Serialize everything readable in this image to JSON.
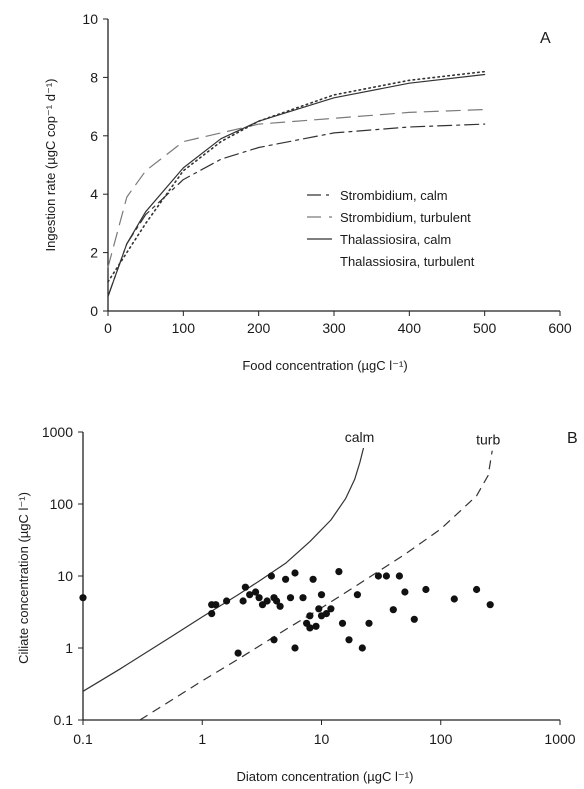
{
  "chart_data": [
    {
      "panel": "A",
      "type": "line",
      "xlabel": "Food concentration  (µgC l⁻¹)",
      "ylabel": "Ingestion rate  (µgC cop⁻¹ d⁻¹)",
      "xlim": [
        0,
        600
      ],
      "ylim": [
        0,
        10
      ],
      "xticks": [
        0,
        100,
        200,
        300,
        400,
        500,
        600
      ],
      "yticks": [
        0,
        2,
        4,
        6,
        8,
        10
      ],
      "grid": false,
      "legend_position": "lower-right",
      "series": [
        {
          "name": "Strombidium,  calm",
          "style": "dash-dot",
          "color": "#333333",
          "x": [
            0,
            25,
            50,
            100,
            150,
            200,
            300,
            400,
            500
          ],
          "y": [
            0.5,
            2.3,
            3.3,
            4.5,
            5.2,
            5.6,
            6.1,
            6.3,
            6.4
          ]
        },
        {
          "name": "Strombidium,  turbulent",
          "style": "long-dash",
          "color": "#7a7a7a",
          "x": [
            0,
            25,
            50,
            100,
            150,
            200,
            300,
            400,
            500
          ],
          "y": [
            1.5,
            3.9,
            4.8,
            5.8,
            6.1,
            6.4,
            6.6,
            6.8,
            6.9
          ]
        },
        {
          "name": "Thalassiosira,  calm",
          "style": "solid",
          "color": "#333333",
          "x": [
            0,
            25,
            50,
            100,
            150,
            200,
            300,
            400,
            500
          ],
          "y": [
            0.5,
            2.3,
            3.4,
            4.9,
            5.9,
            6.5,
            7.3,
            7.8,
            8.1
          ]
        },
        {
          "name": "Thalassiosira,  turbulent",
          "style": "dotted",
          "color": "#333333",
          "x": [
            0,
            25,
            50,
            100,
            150,
            200,
            300,
            400,
            500
          ],
          "y": [
            1.0,
            2.0,
            3.0,
            4.8,
            5.8,
            6.5,
            7.4,
            7.9,
            8.2
          ]
        }
      ]
    },
    {
      "panel": "B",
      "type": "scatter",
      "xlabel": "Diatom concentration  (µgC l⁻¹)",
      "ylabel": "Ciliate concentration  (µgC l⁻¹)",
      "xscale": "log",
      "yscale": "log",
      "xlim": [
        0.1,
        1000
      ],
      "ylim": [
        0.1,
        1000
      ],
      "xticks": [
        0.1,
        1,
        10,
        100,
        1000
      ],
      "yticks": [
        0.1,
        1,
        10,
        100,
        1000
      ],
      "xtick_labels": [
        "0.1",
        "1",
        "10",
        "100",
        "1000"
      ],
      "ytick_labels": [
        "0.1",
        "1",
        "10",
        "100",
        "1000"
      ],
      "grid": false,
      "curves": [
        {
          "label": "calm",
          "style": "solid",
          "x": [
            0.1,
            0.2,
            0.5,
            1,
            2,
            3,
            5,
            8,
            12,
            16,
            19,
            21,
            22.5
          ],
          "y": [
            0.25,
            0.5,
            1.3,
            2.7,
            5.5,
            8.5,
            15,
            30,
            60,
            120,
            220,
            380,
            600
          ]
        },
        {
          "label": "turb",
          "style": "dashed",
          "x": [
            0.3,
            0.5,
            1,
            2,
            5,
            10,
            20,
            50,
            100,
            200,
            250,
            270
          ],
          "y": [
            0.1,
            0.17,
            0.35,
            0.7,
            1.8,
            3.6,
            7.5,
            20,
            45,
            130,
            250,
            550
          ]
        }
      ],
      "points": {
        "x": [
          0.1,
          1.2,
          1.2,
          1.3,
          1.6,
          2.0,
          2.2,
          2.3,
          2.5,
          2.8,
          3.0,
          3.2,
          3.5,
          3.8,
          4.0,
          4.0,
          4.2,
          4.5,
          5.0,
          5.5,
          6.0,
          6.0,
          7.0,
          7.5,
          8.0,
          8.0,
          8.5,
          9.0,
          9.5,
          10.0,
          10.0,
          11.0,
          12.0,
          14.0,
          15.0,
          17.0,
          20.0,
          22.0,
          25.0,
          30.0,
          35.0,
          40.0,
          45.0,
          50.0,
          60.0,
          75.0,
          130.0,
          200.0,
          260.0
        ],
        "y": [
          5.0,
          3.0,
          4.0,
          4.0,
          4.5,
          0.85,
          4.5,
          7.0,
          5.5,
          6.0,
          5.0,
          4.0,
          4.5,
          10.0,
          5.0,
          1.3,
          4.5,
          3.8,
          9.0,
          5.0,
          1.0,
          11.0,
          5.0,
          2.2,
          2.8,
          1.9,
          9.0,
          2.0,
          3.5,
          5.5,
          2.8,
          3.0,
          3.5,
          11.5,
          2.2,
          1.3,
          5.5,
          1.0,
          2.2,
          10.0,
          10.0,
          3.4,
          10.0,
          6.0,
          2.5,
          6.5,
          4.8,
          6.5,
          4.0
        ]
      }
    }
  ],
  "panel_labels": [
    "A",
    "B"
  ]
}
